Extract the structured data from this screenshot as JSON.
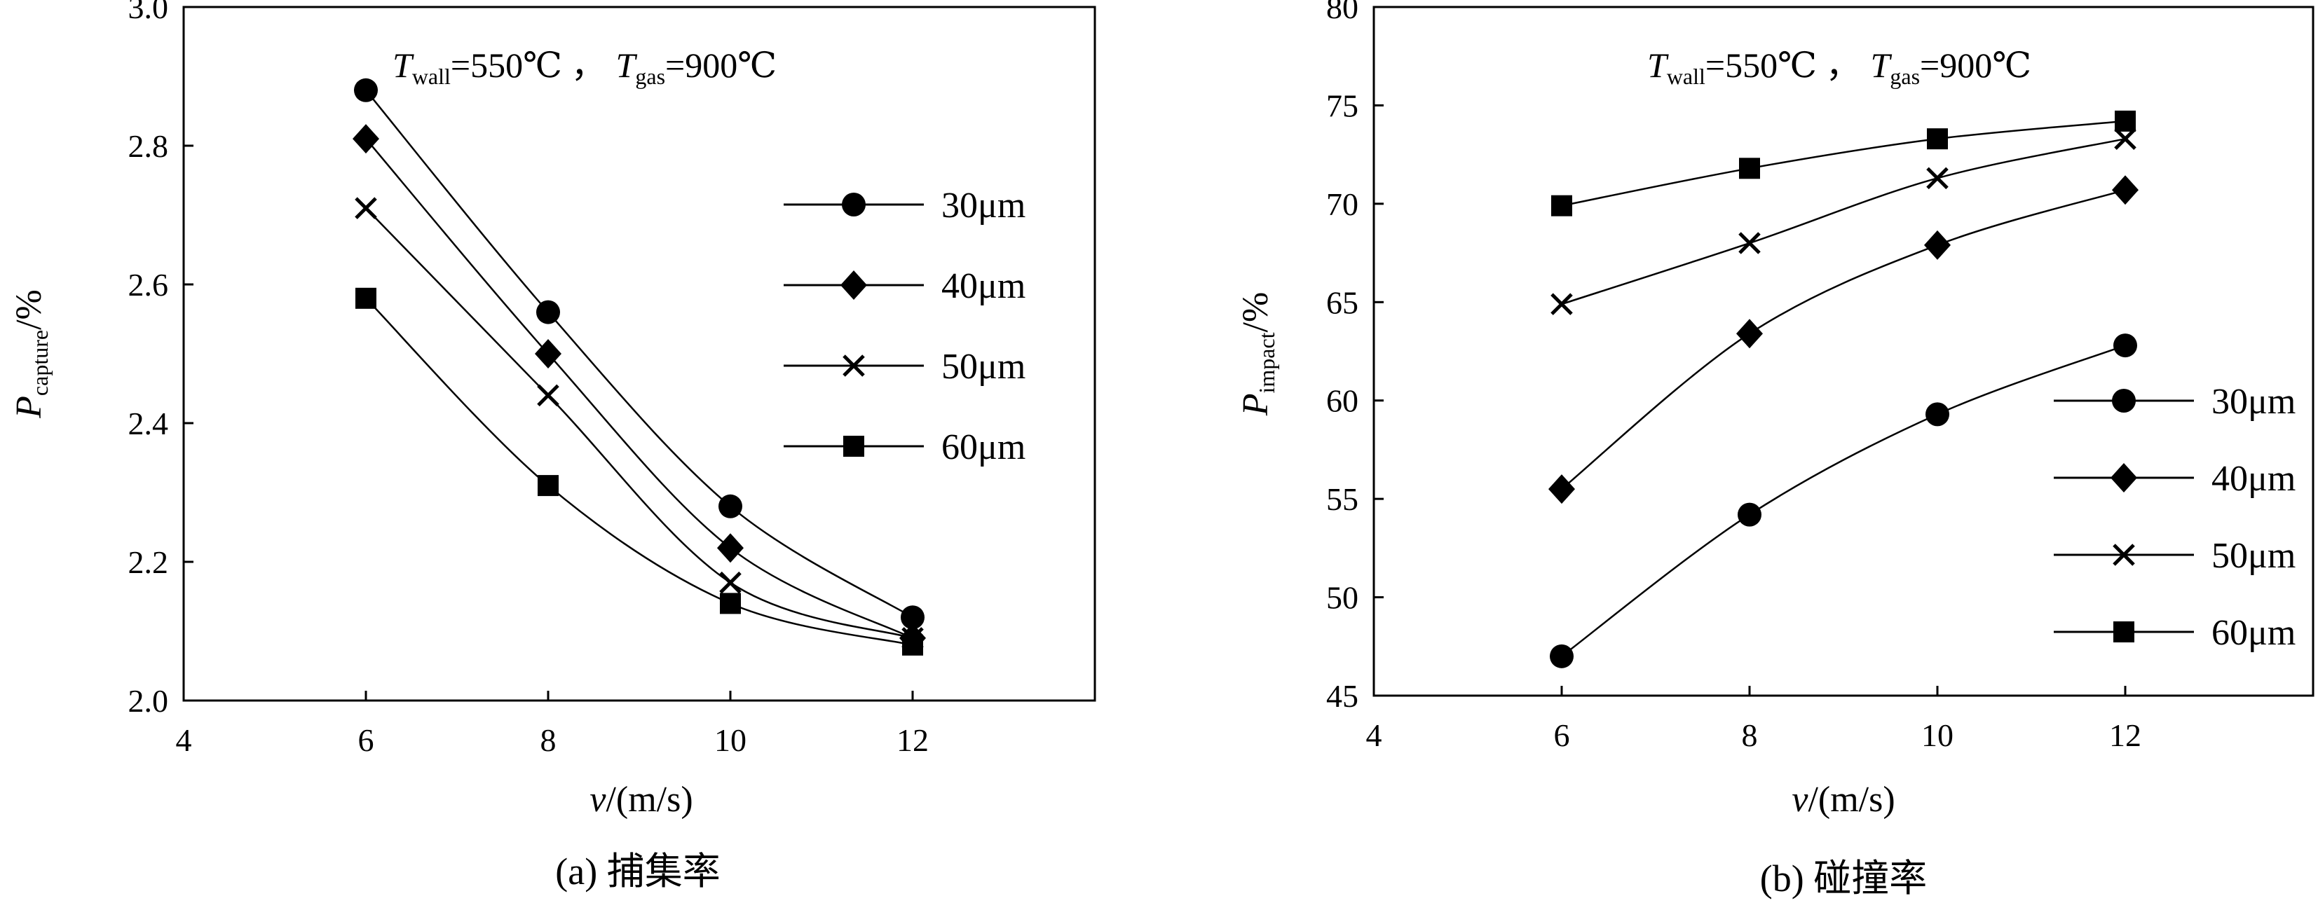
{
  "chart_data": [
    {
      "type": "line",
      "title": "",
      "annotation": {
        "T1": "T",
        "T1_sub": "wall",
        "T1_val": "=550℃ ，",
        "T2": "T",
        "T2_sub": "gas",
        "T2_val": "=900℃"
      },
      "ylabel": {
        "main": "P",
        "sub": "capture",
        "unit": "/%"
      },
      "xlabel": {
        "main": "v",
        "unit": "/(m/s)"
      },
      "xlim": [
        4,
        14
      ],
      "ylim": [
        2.0,
        3.0
      ],
      "x_ticks": [
        "4",
        "6",
        "8",
        "10",
        "12"
      ],
      "y_ticks": [
        "2.0",
        "2.2",
        "2.4",
        "2.6",
        "2.8",
        "3.0"
      ],
      "x": [
        6,
        8,
        10,
        12
      ],
      "series": [
        {
          "name": "30μm",
          "marker": "circle",
          "values": [
            2.88,
            2.56,
            2.28,
            2.12
          ]
        },
        {
          "name": "40μm",
          "marker": "diamond",
          "values": [
            2.81,
            2.5,
            2.22,
            2.09
          ]
        },
        {
          "name": "50μm",
          "marker": "cross",
          "values": [
            2.71,
            2.44,
            2.17,
            2.09
          ]
        },
        {
          "name": "60μm",
          "marker": "square",
          "values": [
            2.58,
            2.31,
            2.14,
            2.08
          ]
        }
      ],
      "caption": "(a) 捕集率"
    },
    {
      "type": "line",
      "title": "",
      "annotation": {
        "T1": "T",
        "T1_sub": "wall",
        "T1_val": "=550℃ ，",
        "T2": "T",
        "T2_sub": "gas",
        "T2_val": "=900℃"
      },
      "ylabel": {
        "main": "P",
        "sub": "impact",
        "unit": "/%"
      },
      "xlabel": {
        "main": "v",
        "unit": "/(m/s)"
      },
      "xlim": [
        4,
        14
      ],
      "ylim": [
        45,
        80
      ],
      "x_ticks": [
        "4",
        "6",
        "8",
        "10",
        "12"
      ],
      "y_ticks": [
        "45",
        "50",
        "55",
        "60",
        "65",
        "70",
        "75",
        "80"
      ],
      "x": [
        6,
        8,
        10,
        12
      ],
      "series": [
        {
          "name": "30μm",
          "marker": "circle",
          "values": [
            47.0,
            54.2,
            59.3,
            62.8
          ]
        },
        {
          "name": "40μm",
          "marker": "diamond",
          "values": [
            55.5,
            63.4,
            67.9,
            70.7
          ]
        },
        {
          "name": "50μm",
          "marker": "cross",
          "values": [
            64.9,
            68.0,
            71.3,
            73.3
          ]
        },
        {
          "name": "60μm",
          "marker": "square",
          "values": [
            69.9,
            71.8,
            73.3,
            74.2
          ]
        }
      ],
      "caption": "(b) 碰撞率"
    }
  ]
}
